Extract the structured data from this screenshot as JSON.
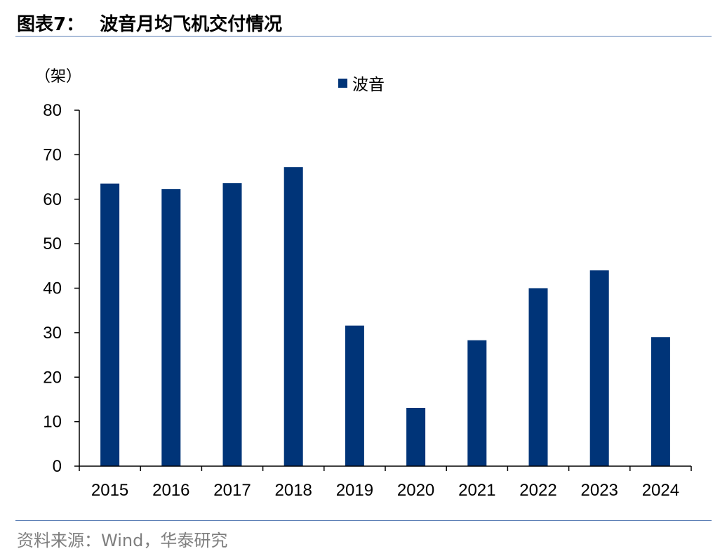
{
  "header": {
    "label": "图表7：",
    "title": "波音月均飞机交付情况"
  },
  "footer": {
    "source": "资料来源：Wind，华泰研究"
  },
  "colors": {
    "bar": "#003478",
    "rule": "#5b7fb5",
    "axis": "#000000"
  },
  "chart_data": {
    "type": "bar",
    "title": "波音月均飞机交付情况",
    "unit_label": "（架）",
    "categories": [
      "2015",
      "2016",
      "2017",
      "2018",
      "2019",
      "2020",
      "2021",
      "2022",
      "2023",
      "2024"
    ],
    "series": [
      {
        "name": "波音",
        "values": [
          63.5,
          62.3,
          63.6,
          67.2,
          31.6,
          13.1,
          28.3,
          40.0,
          44.0,
          29.0
        ]
      }
    ],
    "ylim": [
      0,
      80
    ],
    "yticks": [
      0,
      10,
      20,
      30,
      40,
      50,
      60,
      70,
      80
    ],
    "legend_position": "top-center",
    "grid": false
  }
}
